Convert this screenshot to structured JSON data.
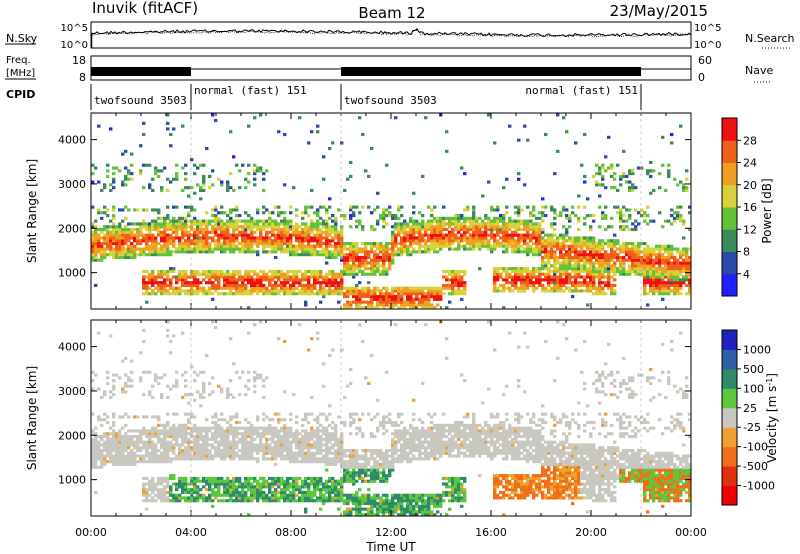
{
  "header": {
    "station": "Inuvik (fitACF)",
    "beam": "Beam 12",
    "date": "23/May/2015"
  },
  "noise_panel": {
    "left_label": "N.Sky",
    "right_label": "N.Search",
    "left_ticks": [
      "10^5",
      "10^0"
    ],
    "right_ticks": [
      "10^5",
      "10^0"
    ]
  },
  "freq_panel": {
    "left_label_line1": "Freq.",
    "left_label_line2": "[MHz]",
    "left_ticks": [
      "18",
      "8"
    ],
    "right_label": "Nave",
    "right_ticks": [
      "60",
      "0"
    ]
  },
  "cpid": {
    "label": "CPID",
    "segments": [
      {
        "text": "twofsound 3503",
        "start_h": 0,
        "end_h": 4
      },
      {
        "text": "normal (fast) 151",
        "start_h": 4,
        "end_h": 10
      },
      {
        "text": "twofsound 3503",
        "start_h": 10,
        "end_h": 22
      },
      {
        "text": "normal (fast) 151",
        "start_h": 22,
        "end_h": 24
      }
    ]
  },
  "colors": {
    "power": [
      "#1f1fff",
      "#2a4aa8",
      "#3c8a5a",
      "#63c13a",
      "#d8d23a",
      "#f0a020",
      "#f06018",
      "#f01010"
    ],
    "velocity": [
      "#2020c0",
      "#2e5ea8",
      "#2e8a6a",
      "#5ac83a",
      "#c8c8c0",
      "#f0a030",
      "#f07018",
      "#e03010",
      "#f00000"
    ]
  },
  "chart_data": [
    {
      "type": "heatmap",
      "title": "",
      "xlabel": "Time UT",
      "ylabel": "Slant Range [km]",
      "x_ticks": [
        "00:00",
        "04:00",
        "08:00",
        "12:00",
        "16:00",
        "20:00",
        "00:00"
      ],
      "y_ticks": [
        "1000",
        "2000",
        "3000",
        "4000"
      ],
      "xlim_hours": [
        0,
        24
      ],
      "ylim_km": [
        180,
        4600
      ],
      "colorbar": {
        "label": "Power [dB]",
        "ticks": [
          "4",
          "8",
          "12",
          "16",
          "20",
          "24",
          "28"
        ],
        "range": [
          0,
          30
        ]
      }
    },
    {
      "type": "heatmap",
      "title": "",
      "xlabel": "Time UT",
      "ylabel": "Slant Range [km]",
      "x_ticks": [
        "00:00",
        "04:00",
        "08:00",
        "12:00",
        "16:00",
        "20:00",
        "00:00"
      ],
      "y_ticks": [
        "1000",
        "2000",
        "3000",
        "4000"
      ],
      "xlim_hours": [
        0,
        24
      ],
      "ylim_km": [
        180,
        4600
      ],
      "colorbar": {
        "label": "Velocity [m s^-1]",
        "ticks": [
          "1000",
          "500",
          "100",
          "25",
          "-25",
          "-100",
          "-500",
          "-1000"
        ]
      }
    }
  ]
}
